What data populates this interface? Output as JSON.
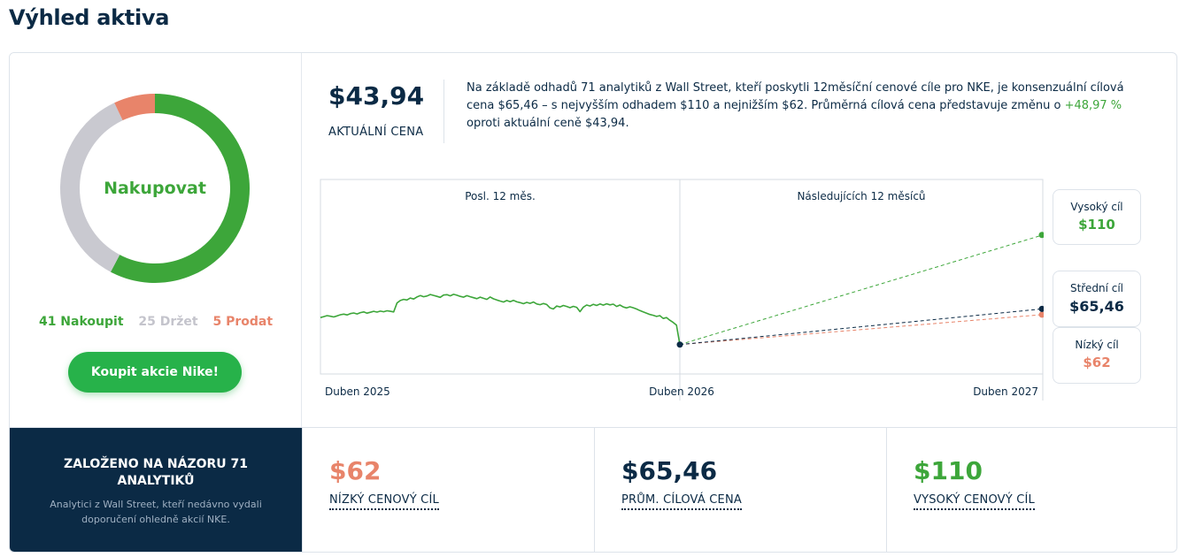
{
  "page": {
    "title": "Výhled aktiva"
  },
  "rating": {
    "label": "Nakupovat",
    "buy_count": 41,
    "hold_count": 25,
    "sell_count": 5,
    "buy_text": "41 Nakoupit",
    "hold_text": "25 Držet",
    "sell_text": "5 Prodat",
    "colors": {
      "buy": "#3da63a",
      "hold": "#c9c9d0",
      "sell": "#e8846a"
    }
  },
  "buy_button": {
    "label": "Koupit akcie Nike!"
  },
  "price": {
    "value": "$43,94",
    "label": "AKTUÁLNÍ CENA"
  },
  "summary": {
    "before": "Na základě odhadů 71 analytiků z Wall Street, kteří poskytli 12měsíční cenové cíle pro NKE, je konsenzuální cílová cena $65,46 – s nejvyšším odhadem $110 a nejnižším $62. Průměrná cílová cena představuje změnu o ",
    "pct": "+48,97 %",
    "after": " oproti aktuální ceně $43,94."
  },
  "chart_data": {
    "type": "line",
    "past_label": "Posl. 12 měs.",
    "future_label": "Následujících 12 měsíců",
    "x_labels": [
      "Duben 2025",
      "Duben 2026",
      "Duben 2027"
    ],
    "history": [
      60.2,
      60.8,
      61.4,
      61.0,
      60.6,
      61.2,
      61.9,
      62.3,
      61.8,
      62.6,
      63.0,
      62.4,
      63.2,
      63.6,
      62.9,
      63.4,
      64.0,
      63.5,
      64.1,
      63.7,
      64.3,
      64.0,
      63.6,
      69.0,
      70.5,
      71.2,
      70.8,
      72.0,
      71.4,
      72.6,
      73.5,
      72.8,
      73.2,
      74.1,
      73.6,
      73.0,
      72.4,
      73.8,
      74.0,
      73.3,
      74.2,
      73.7,
      73.0,
      72.5,
      73.4,
      72.8,
      72.2,
      71.6,
      72.5,
      71.8,
      71.2,
      72.6,
      71.5,
      70.8,
      70.2,
      69.6,
      70.5,
      69.8,
      70.6,
      69.7,
      69.2,
      68.6,
      69.4,
      68.8,
      69.6,
      68.4,
      68.0,
      68.7,
      68.1,
      66.0,
      65.4,
      67.2,
      66.6,
      67.5,
      66.9,
      66.2,
      67.0,
      66.4,
      63.8,
      66.5,
      67.8,
      67.2,
      68.2,
      67.5,
      68.4,
      67.7,
      68.5,
      67.9,
      68.3,
      66.9,
      67.8,
      66.6,
      66.0,
      66.7,
      66.1,
      65.4,
      64.4,
      63.6,
      62.9,
      62.1,
      61.6,
      60.9,
      61.4,
      59.7,
      60.2,
      58.6,
      57.3,
      55.6,
      43.94
    ],
    "current": 43.94,
    "targets": {
      "high": 110,
      "mean": 65.46,
      "low": 62
    },
    "colors": {
      "history": "#3da63a",
      "high": "#3da63a",
      "mean": "#0b2a45",
      "low": "#e8846a"
    }
  },
  "targets": {
    "high": {
      "label": "Vysoký cíl",
      "value": "$110"
    },
    "mean": {
      "label": "Střední cíl",
      "value": "$65,46"
    },
    "low": {
      "label": "Nízký cíl",
      "value": "$62"
    }
  },
  "based_on": {
    "title": "ZALOŽENO NA NÁZORU 71 ANALYTIKŮ",
    "text": "Analytici z Wall Street, kteří nedávno vydali doporučení ohledně akcií NKE."
  },
  "stats": {
    "low": {
      "value": "$62",
      "label": "NÍZKÝ CENOVÝ CÍL"
    },
    "avg": {
      "value": "$65,46",
      "label": "PRŮM. CÍLOVÁ CENA"
    },
    "high": {
      "value": "$110",
      "label": "VYSOKÝ CENOVÝ CÍL"
    }
  }
}
